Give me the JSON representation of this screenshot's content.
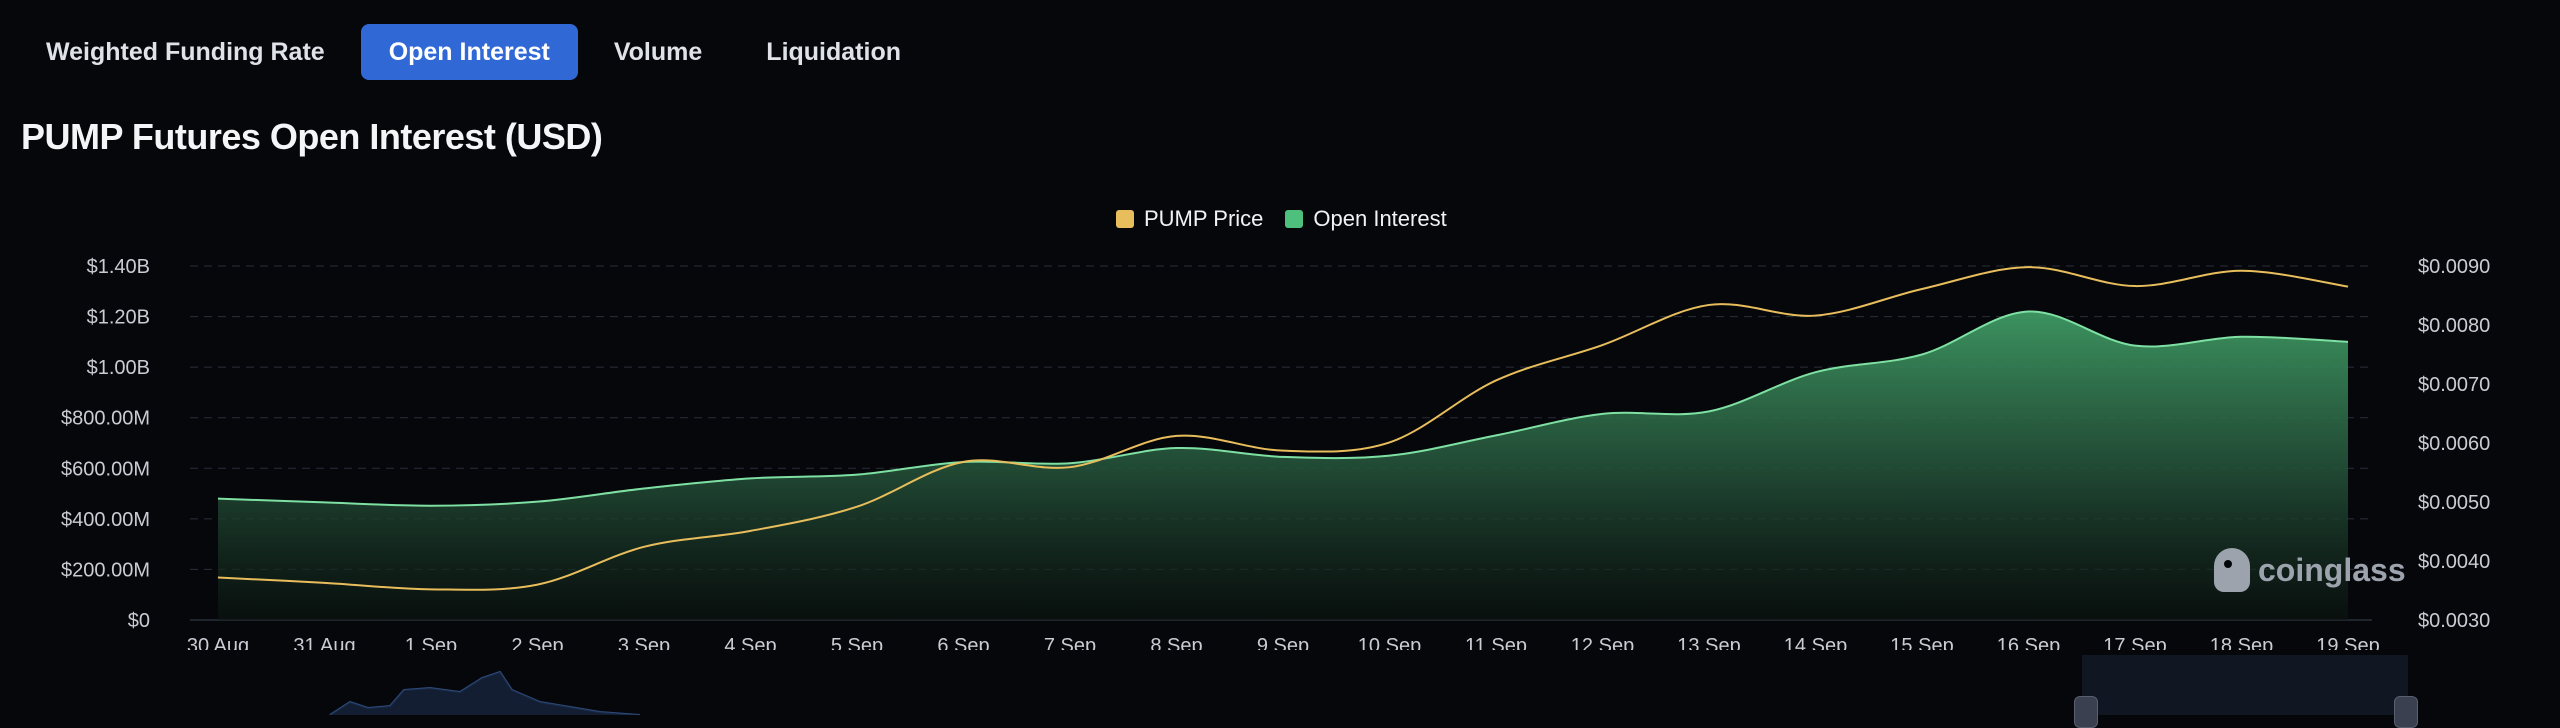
{
  "tabs": [
    {
      "label": "Weighted Funding Rate",
      "active": false
    },
    {
      "label": "Open Interest",
      "active": true
    },
    {
      "label": "Volume",
      "active": false
    },
    {
      "label": "Liquidation",
      "active": false
    }
  ],
  "page_title": "PUMP Futures Open Interest (USD)",
  "legend": [
    {
      "label": "PUMP Price",
      "color": "#e8bd5c"
    },
    {
      "label": "Open Interest",
      "color": "#4fbf7e"
    }
  ],
  "brand": "coinglass",
  "chart_data": {
    "type": "area",
    "title": "PUMP Futures Open Interest (USD)",
    "categories": [
      "30 Aug",
      "31 Aug",
      "1 Sep",
      "2 Sep",
      "3 Sep",
      "4 Sep",
      "5 Sep",
      "6 Sep",
      "7 Sep",
      "8 Sep",
      "9 Sep",
      "10 Sep",
      "11 Sep",
      "12 Sep",
      "13 Sep",
      "14 Sep",
      "15 Sep",
      "16 Sep",
      "17 Sep",
      "18 Sep",
      "19 Sep"
    ],
    "left_axis": {
      "ticks": [
        "$0",
        "$200.00M",
        "$400.00M",
        "$600.00M",
        "$800.00M",
        "$1.00B",
        "$1.20B",
        "$1.40B"
      ],
      "ylim": [
        0,
        1400000000
      ]
    },
    "right_axis": {
      "ticks": [
        "$0.0030",
        "$0.0040",
        "$0.0050",
        "$0.0060",
        "$0.0070",
        "$0.0080",
        "$0.0090"
      ],
      "ylim": [
        0.003,
        0.009
      ]
    },
    "grid": true,
    "legend_position": "top-center",
    "series": [
      {
        "name": "Open Interest",
        "axis": "left",
        "color": "#4fbf7e",
        "values": [
          480000000,
          465000000,
          452000000,
          468000000,
          520000000,
          560000000,
          575000000,
          625000000,
          620000000,
          680000000,
          645000000,
          650000000,
          730000000,
          815000000,
          825000000,
          980000000,
          1050000000,
          1220000000,
          1085000000,
          1120000000,
          1100000000
        ]
      },
      {
        "name": "PUMP Price",
        "axis": "right",
        "color": "#e8bd5c",
        "values": [
          0.00372,
          0.00363,
          0.00352,
          0.0036,
          0.00424,
          0.00451,
          0.00492,
          0.00568,
          0.00559,
          0.00612,
          0.00587,
          0.00601,
          0.00706,
          0.00766,
          0.00834,
          0.00816,
          0.00861,
          0.00898,
          0.00866,
          0.00892,
          0.00865
        ]
      }
    ]
  }
}
